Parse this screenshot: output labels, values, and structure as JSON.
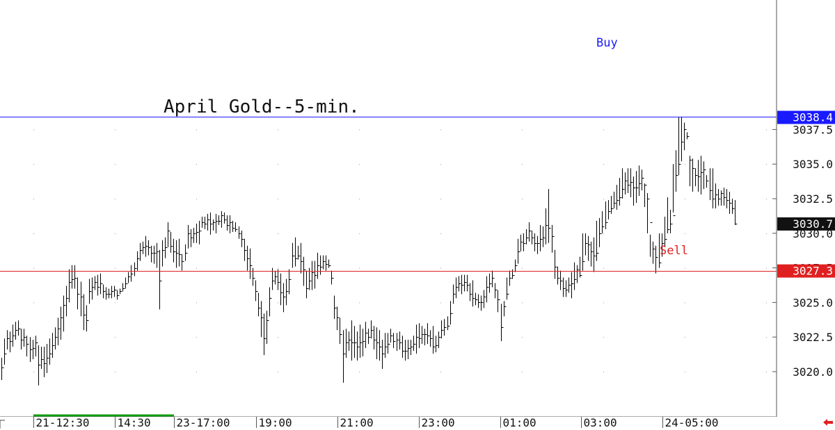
{
  "chart_data": {
    "type": "ohlc",
    "title": "April Gold--5-min.",
    "xlabel": "",
    "ylabel": "",
    "ylim": [
      3018.0,
      3044.6
    ],
    "y_ticks": [
      "3020.0",
      "3022.5",
      "3025.0",
      "3027.5",
      "3030.0",
      "3032.5",
      "3035.0",
      "3037.5"
    ],
    "x_ticks": [
      "21-12:30",
      "14:30",
      "23-17:00",
      "19:00",
      "21:00",
      "23:00",
      "01:00",
      "03:00",
      "24-05:00"
    ],
    "horizontal_lines": [
      {
        "name": "Buy",
        "label": "3038.4",
        "value": 3038.4,
        "color": "#1a1aff"
      },
      {
        "name": "Sell",
        "label": "3027.3",
        "value": 3027.3,
        "color": "#e02020"
      }
    ],
    "last_price": {
      "label": "3030.7",
      "value": 3030.7
    },
    "grid": "dotted",
    "colors": {
      "bars": "#000000",
      "buy": "#1a1aff",
      "sell": "#e02020",
      "last_price_box": "#111111",
      "session_marker": "#12a012"
    },
    "series": [
      {
        "low": [
          3019.4,
          3020.5,
          3021.6,
          3021.4,
          3021.8,
          3022.3,
          3022.6,
          3021.6,
          3021.8,
          3021.1,
          3020.7,
          3020.9,
          3021.1,
          3019.0,
          3020.2,
          3019.6,
          3019.9,
          3020.5,
          3021.0,
          3021.6,
          3021.9,
          3022.3,
          3022.9,
          3024.0,
          3025.0,
          3026.0,
          3026.0,
          3024.5,
          3024.0,
          3023.0,
          3022.9,
          3024.9,
          3025.2,
          3025.9,
          3025.5,
          3025.6,
          3025.3,
          3025.2,
          3025.3,
          3025.3,
          3025.4,
          3025.2,
          3025.6,
          3025.8,
          3026.0,
          3026.4,
          3026.5,
          3026.9,
          3027.3,
          3028.0,
          3028.5,
          3028.3,
          3028.4,
          3027.9,
          3027.8,
          3027.5,
          3024.5,
          3027.6,
          3028.2,
          3029.0,
          3028.6,
          3027.9,
          3027.5,
          3027.6,
          3027.3,
          3028.0,
          3028.9,
          3029.0,
          3029.3,
          3029.3,
          3029.2,
          3030.4,
          3030.3,
          3030.2,
          3029.9,
          3030.2,
          3030.0,
          3030.6,
          3030.4,
          3030.7,
          3030.2,
          3030.0,
          3030.1,
          3030.1,
          3029.6,
          3029.0,
          3028.0,
          3027.3,
          3026.7,
          3026.2,
          3025.1,
          3024.0,
          3022.5,
          3021.2,
          3022.0,
          3024.0,
          3025.9,
          3026.3,
          3025.9,
          3024.8,
          3024.3,
          3024.8,
          3025.6,
          3027.5,
          3027.6,
          3028.1,
          3027.1,
          3026.2,
          3025.3,
          3025.9,
          3025.9,
          3026.0,
          3026.7,
          3027.0,
          3027.4,
          3027.3,
          3027.5,
          3026.3,
          3023.8,
          3023.0,
          3022.0,
          3019.2,
          3021.0,
          3021.5,
          3020.8,
          3021.0,
          3020.8,
          3021.0,
          3021.1,
          3021.7,
          3022.0,
          3022.4,
          3021.6,
          3020.9,
          3020.8,
          3020.2,
          3021.0,
          3021.3,
          3022.1,
          3021.7,
          3021.5,
          3021.6,
          3021.0,
          3020.8,
          3020.9,
          3021.2,
          3021.5,
          3021.3,
          3021.7,
          3022.0,
          3021.9,
          3022.0,
          3021.8,
          3021.3,
          3021.4,
          3021.7,
          3022.4,
          3022.6,
          3023.0,
          3023.4,
          3024.9,
          3025.3,
          3025.8,
          3025.6,
          3025.8,
          3025.8,
          3025.1,
          3024.7,
          3024.8,
          3024.6,
          3024.4,
          3024.6,
          3025.0,
          3025.7,
          3026.1,
          3025.3,
          3024.3,
          3022.2,
          3024.0,
          3025.2,
          3026.2,
          3026.7,
          3027.2,
          3027.8,
          3028.7,
          3028.7,
          3029.2,
          3029.4,
          3029.2,
          3028.7,
          3028.5,
          3028.7,
          3029.0,
          3029.2,
          3029.3,
          3028.6,
          3026.7,
          3026.3,
          3025.9,
          3025.4,
          3025.4,
          3025.7,
          3025.3,
          3025.9,
          3026.4,
          3026.8,
          3027.3,
          3028.4,
          3028.0,
          3027.6,
          3027.2,
          3028.0,
          3029.0,
          3030.0,
          3030.3,
          3031.0,
          3031.4,
          3031.8,
          3031.7,
          3032.0,
          3032.5,
          3032.8,
          3032.9,
          3032.6,
          3032.0,
          3032.2,
          3032.7,
          3033.1,
          3031.9,
          3030.0,
          3028.3,
          3027.8,
          3027.1,
          3027.5,
          3028.3,
          3029.0,
          3030.0,
          3030.0,
          3031.5,
          3033.0,
          3034.2,
          3035.2,
          3036.0,
          3036.8,
          3033.4,
          3033.0,
          3033.4,
          3033.0,
          3032.8,
          3033.2,
          3033.3,
          3032.4,
          3031.8,
          3031.8,
          3032.0,
          3032.0,
          3032.0,
          3031.8,
          3031.4,
          3031.4,
          3030.6
        ],
        "high": [
          3021.0,
          3022.4,
          3023.0,
          3022.9,
          3023.4,
          3023.6,
          3023.7,
          3023.1,
          3023.1,
          3022.6,
          3022.5,
          3022.3,
          3022.6,
          3021.9,
          3021.8,
          3021.8,
          3022.0,
          3022.4,
          3022.8,
          3023.2,
          3023.9,
          3024.7,
          3025.5,
          3026.2,
          3027.4,
          3027.7,
          3027.7,
          3026.8,
          3026.5,
          3025.6,
          3024.8,
          3026.7,
          3026.8,
          3026.9,
          3027.0,
          3027.1,
          3026.3,
          3026.1,
          3026.0,
          3026.2,
          3026.2,
          3025.9,
          3026.0,
          3026.4,
          3026.8,
          3027.2,
          3027.7,
          3027.9,
          3028.7,
          3029.3,
          3029.4,
          3029.8,
          3029.5,
          3029.1,
          3029.1,
          3029.3,
          3028.8,
          3029.5,
          3029.7,
          3030.8,
          3030.1,
          3029.6,
          3029.5,
          3029.6,
          3028.5,
          3029.2,
          3030.6,
          3030.3,
          3030.4,
          3030.7,
          3030.9,
          3031.2,
          3031.2,
          3031.4,
          3031.5,
          3031.0,
          3031.4,
          3031.3,
          3031.6,
          3031.5,
          3031.3,
          3031.3,
          3030.9,
          3030.8,
          3030.5,
          3030.2,
          3029.6,
          3029.1,
          3028.9,
          3027.5,
          3026.6,
          3025.7,
          3025.1,
          3024.2,
          3024.4,
          3026.1,
          3027.5,
          3027.3,
          3027.4,
          3027.1,
          3026.4,
          3026.7,
          3027.4,
          3029.3,
          3029.7,
          3029.1,
          3029.3,
          3028.3,
          3027.3,
          3027.5,
          3028.0,
          3028.0,
          3028.6,
          3028.4,
          3028.4,
          3028.4,
          3028.1,
          3027.3,
          3025.5,
          3024.7,
          3023.9,
          3023.0,
          3023.1,
          3022.9,
          3023.7,
          3023.3,
          3022.9,
          3023.4,
          3023.1,
          3023.6,
          3023.1,
          3023.7,
          3023.3,
          3023.2,
          3023.0,
          3022.3,
          3022.8,
          3022.8,
          3023.1,
          3022.8,
          3022.8,
          3022.9,
          3022.6,
          3022.3,
          3022.3,
          3022.3,
          3022.6,
          3023.4,
          3023.5,
          3023.3,
          3023.1,
          3023.5,
          3023.0,
          3023.3,
          3022.6,
          3022.9,
          3023.7,
          3023.8,
          3024.0,
          3025.1,
          3026.3,
          3026.8,
          3026.9,
          3027.0,
          3027.0,
          3027.0,
          3026.4,
          3026.6,
          3025.7,
          3025.6,
          3025.5,
          3025.9,
          3026.9,
          3027.1,
          3027.3,
          3026.4,
          3025.9,
          3024.9,
          3025.1,
          3026.8,
          3027.3,
          3027.4,
          3028.1,
          3029.6,
          3029.9,
          3030.0,
          3030.3,
          3030.8,
          3030.2,
          3030.0,
          3029.8,
          3030.6,
          3030.5,
          3031.8,
          3033.2,
          3030.6,
          3028.8,
          3027.6,
          3027.3,
          3026.8,
          3026.6,
          3026.8,
          3027.2,
          3027.9,
          3027.7,
          3028.3,
          3030.0,
          3030.0,
          3029.8,
          3029.4,
          3029.7,
          3030.9,
          3031.1,
          3031.6,
          3032.3,
          3032.4,
          3032.7,
          3033.0,
          3033.5,
          3034.0,
          3034.7,
          3034.4,
          3034.7,
          3034.7,
          3034.1,
          3034.5,
          3034.9,
          3034.6,
          3033.6,
          3032.9,
          3029.9,
          3029.4,
          3029.1,
          3030.0,
          3030.0,
          3031.2,
          3032.6,
          3031.7,
          3035.0,
          3036.0,
          3038.4,
          3038.4,
          3038.0,
          3037.3,
          3035.6,
          3035.4,
          3034.7,
          3035.3,
          3035.6,
          3035.2,
          3034.2,
          3034.7,
          3034.7,
          3033.6,
          3033.2,
          3033.1,
          3033.3,
          3033.2,
          3033.0,
          3032.5,
          3032.4
        ],
        "close": [
          3020.3,
          3021.3,
          3022.4,
          3022.2,
          3022.6,
          3023.0,
          3023.1,
          3022.3,
          3022.5,
          3022.0,
          3021.6,
          3021.7,
          3022.1,
          3020.5,
          3020.9,
          3020.6,
          3021.0,
          3021.3,
          3021.9,
          3022.5,
          3023.1,
          3023.9,
          3024.8,
          3025.3,
          3026.5,
          3026.7,
          3026.8,
          3025.6,
          3025.4,
          3024.1,
          3023.7,
          3025.8,
          3026.1,
          3026.5,
          3026.1,
          3026.4,
          3025.8,
          3025.6,
          3025.6,
          3025.8,
          3025.9,
          3025.5,
          3025.8,
          3026.0,
          3026.4,
          3026.9,
          3027.1,
          3027.5,
          3028.2,
          3028.8,
          3029.0,
          3029.1,
          3029.0,
          3028.6,
          3028.6,
          3028.7,
          3026.6,
          3028.8,
          3029.0,
          3030.2,
          3029.1,
          3028.7,
          3028.6,
          3028.5,
          3028.0,
          3028.6,
          3030.0,
          3029.7,
          3030.0,
          3030.1,
          3030.2,
          3030.8,
          3030.7,
          3031.0,
          3030.7,
          3030.8,
          3030.9,
          3030.9,
          3031.3,
          3031.0,
          3030.6,
          3030.8,
          3030.4,
          3030.3,
          3030.0,
          3029.6,
          3028.8,
          3028.2,
          3027.7,
          3026.8,
          3025.8,
          3024.6,
          3023.9,
          3022.4,
          3023.7,
          3025.3,
          3026.6,
          3026.9,
          3026.5,
          3025.7,
          3025.4,
          3025.8,
          3026.7,
          3028.4,
          3028.2,
          3028.4,
          3028.0,
          3027.4,
          3026.0,
          3026.6,
          3027.2,
          3027.0,
          3027.7,
          3027.6,
          3028.0,
          3027.8,
          3027.7,
          3026.8,
          3024.6,
          3023.9,
          3022.7,
          3021.3,
          3022.1,
          3022.3,
          3022.1,
          3022.1,
          3021.8,
          3022.1,
          3022.2,
          3022.8,
          3022.5,
          3023.0,
          3022.3,
          3022.1,
          3021.8,
          3021.3,
          3021.8,
          3022.0,
          3022.6,
          3022.2,
          3022.3,
          3022.1,
          3021.5,
          3021.5,
          3021.7,
          3021.8,
          3022.0,
          3022.5,
          3022.4,
          3022.7,
          3022.7,
          3022.6,
          3022.4,
          3021.8,
          3021.9,
          3022.5,
          3023.0,
          3023.2,
          3023.3,
          3024.2,
          3025.6,
          3026.1,
          3026.4,
          3026.3,
          3026.5,
          3026.3,
          3025.6,
          3025.3,
          3025.2,
          3025.0,
          3025.0,
          3025.4,
          3026.1,
          3026.4,
          3026.8,
          3025.9,
          3025.2,
          3023.2,
          3024.7,
          3025.6,
          3026.8,
          3027.0,
          3027.7,
          3028.7,
          3029.4,
          3029.3,
          3029.7,
          3030.2,
          3029.7,
          3029.3,
          3029.3,
          3029.6,
          3029.7,
          3030.6,
          3030.4,
          3029.8,
          3027.6,
          3026.8,
          3026.6,
          3026.0,
          3025.9,
          3026.3,
          3026.4,
          3026.7,
          3027.4,
          3027.0,
          3028.0,
          3029.3,
          3029.2,
          3028.7,
          3028.4,
          3028.6,
          3030.0,
          3030.5,
          3030.8,
          3031.6,
          3031.8,
          3032.2,
          3032.4,
          3032.6,
          3033.2,
          3033.8,
          3033.5,
          3033.7,
          3033.3,
          3033.3,
          3033.6,
          3034.0,
          3033.5,
          3032.5,
          3030.8,
          3028.9,
          3028.3,
          3027.9,
          3029.3,
          3029.6,
          3030.3,
          3030.7,
          3031.3,
          3034.2,
          3035.0,
          3036.6,
          3037.5,
          3037.0,
          3035.3,
          3034.7,
          3034.2,
          3034.1,
          3034.4,
          3034.6,
          3033.8,
          3033.1,
          3032.5,
          3032.8,
          3032.5,
          3032.9,
          3032.6,
          3032.4,
          3032.2,
          3031.8,
          3030.7
        ],
        "name": ""
      }
    ]
  },
  "annotations": {
    "title": "April Gold--5-min.",
    "buy_label": "Buy",
    "sell_label": "Sell"
  },
  "footer": {
    "nav_arrow_icon": "left-arrow-icon"
  }
}
